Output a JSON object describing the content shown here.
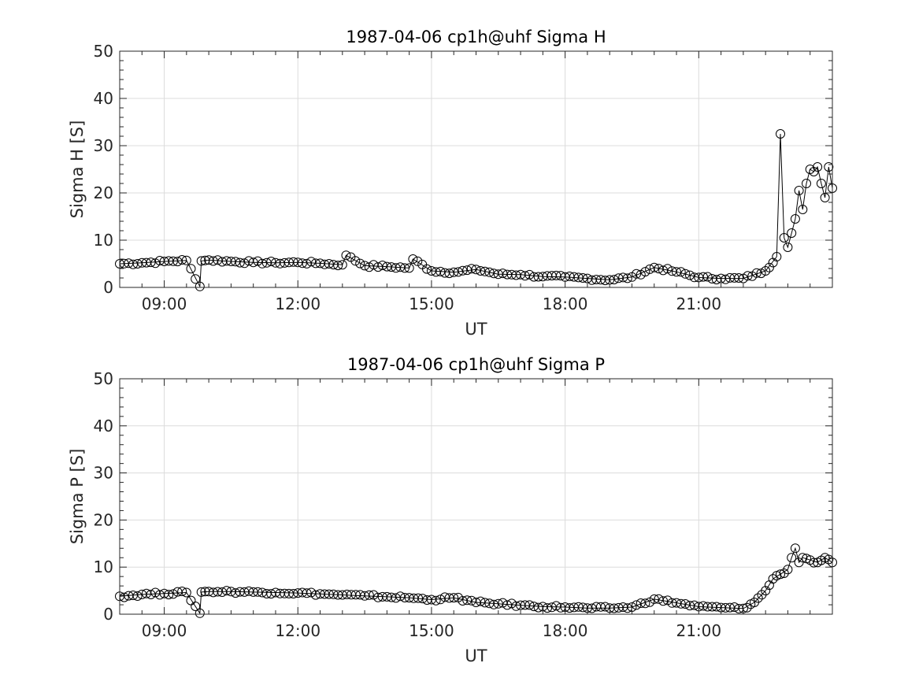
{
  "figure": {
    "background": "#ffffff",
    "axes_color": "#262626",
    "grid_color": "#dcdcdc",
    "marker": "open-circle",
    "line_color": "#000000"
  },
  "chart_data": [
    {
      "type": "line",
      "title": "1987-04-06  cp1h@uhf Sigma H",
      "xlabel": "UT",
      "ylabel": "Sigma H [S]",
      "xlim": [
        "08:00",
        "24:00"
      ],
      "ylim": [
        0,
        50
      ],
      "grid": true,
      "x_ticks": [
        "09:00",
        "12:00",
        "15:00",
        "18:00",
        "21:00"
      ],
      "y_ticks": [
        "0",
        "10",
        "20",
        "30",
        "40",
        "50"
      ],
      "series": [
        {
          "marker": "open-circle",
          "x": [
            "08:00",
            "08:30",
            "09:00",
            "09:30",
            "09:48",
            "09:50",
            "10:00",
            "10:30",
            "11:00",
            "11:30",
            "12:00",
            "12:30",
            "13:00",
            "13:05",
            "13:30",
            "14:00",
            "14:30",
            "14:35",
            "15:00",
            "15:30",
            "16:00",
            "16:30",
            "17:00",
            "17:30",
            "18:00",
            "18:30",
            "19:00",
            "19:30",
            "20:00",
            "20:30",
            "21:00",
            "21:30",
            "22:00",
            "22:30",
            "22:45",
            "22:50",
            "22:55",
            "23:00",
            "23:05",
            "23:10",
            "23:15",
            "23:20",
            "23:25",
            "23:30",
            "23:35",
            "23:40",
            "23:45",
            "23:50",
            "23:55",
            "24:00"
          ],
          "values": [
            5.0,
            5.2,
            5.5,
            5.7,
            0.2,
            5.6,
            5.8,
            5.5,
            5.3,
            5.2,
            5.3,
            5.1,
            4.8,
            6.8,
            4.6,
            4.4,
            4.1,
            6.0,
            3.5,
            3.2,
            3.8,
            2.8,
            2.7,
            2.3,
            2.2,
            1.9,
            1.6,
            2.2,
            4.2,
            3.3,
            2.1,
            1.9,
            1.9,
            3.5,
            6.5,
            32.5,
            10.5,
            8.5,
            11.5,
            14.5,
            20.5,
            16.5,
            22.0,
            25.0,
            24.5,
            25.5,
            22.0,
            19.0,
            25.5,
            21.0
          ]
        }
      ]
    },
    {
      "type": "line",
      "title": "1987-04-06  cp1h@uhf Sigma P",
      "xlabel": "UT",
      "ylabel": "Sigma P [S]",
      "xlim": [
        "08:00",
        "24:00"
      ],
      "ylim": [
        0,
        50
      ],
      "grid": true,
      "x_ticks": [
        "09:00",
        "12:00",
        "15:00",
        "18:00",
        "21:00"
      ],
      "y_ticks": [
        "0",
        "10",
        "20",
        "30",
        "40",
        "50"
      ],
      "series": [
        {
          "marker": "open-circle",
          "x": [
            "08:00",
            "08:30",
            "09:00",
            "09:30",
            "09:48",
            "09:50",
            "10:00",
            "10:30",
            "11:00",
            "11:30",
            "12:00",
            "12:30",
            "13:00",
            "13:30",
            "14:00",
            "14:30",
            "15:00",
            "15:30",
            "16:00",
            "16:30",
            "17:00",
            "17:30",
            "18:00",
            "18:30",
            "19:00",
            "19:30",
            "20:00",
            "20:30",
            "21:00",
            "21:30",
            "22:00",
            "22:15",
            "22:30",
            "22:40",
            "22:50",
            "23:00",
            "23:05",
            "23:10",
            "23:15",
            "23:20",
            "23:30",
            "23:40",
            "23:50",
            "24:00"
          ],
          "values": [
            3.8,
            4.2,
            4.4,
            4.6,
            0.2,
            4.7,
            4.8,
            4.8,
            4.7,
            4.6,
            4.5,
            4.3,
            4.1,
            3.9,
            3.7,
            3.5,
            3.1,
            3.5,
            2.5,
            2.2,
            1.9,
            1.6,
            1.5,
            1.3,
            1.3,
            1.5,
            3.2,
            2.4,
            1.6,
            1.4,
            1.2,
            2.5,
            5.0,
            7.5,
            8.5,
            9.5,
            12.0,
            14.0,
            11.0,
            12.0,
            11.5,
            11.0,
            12.0,
            11.0
          ]
        }
      ]
    }
  ]
}
